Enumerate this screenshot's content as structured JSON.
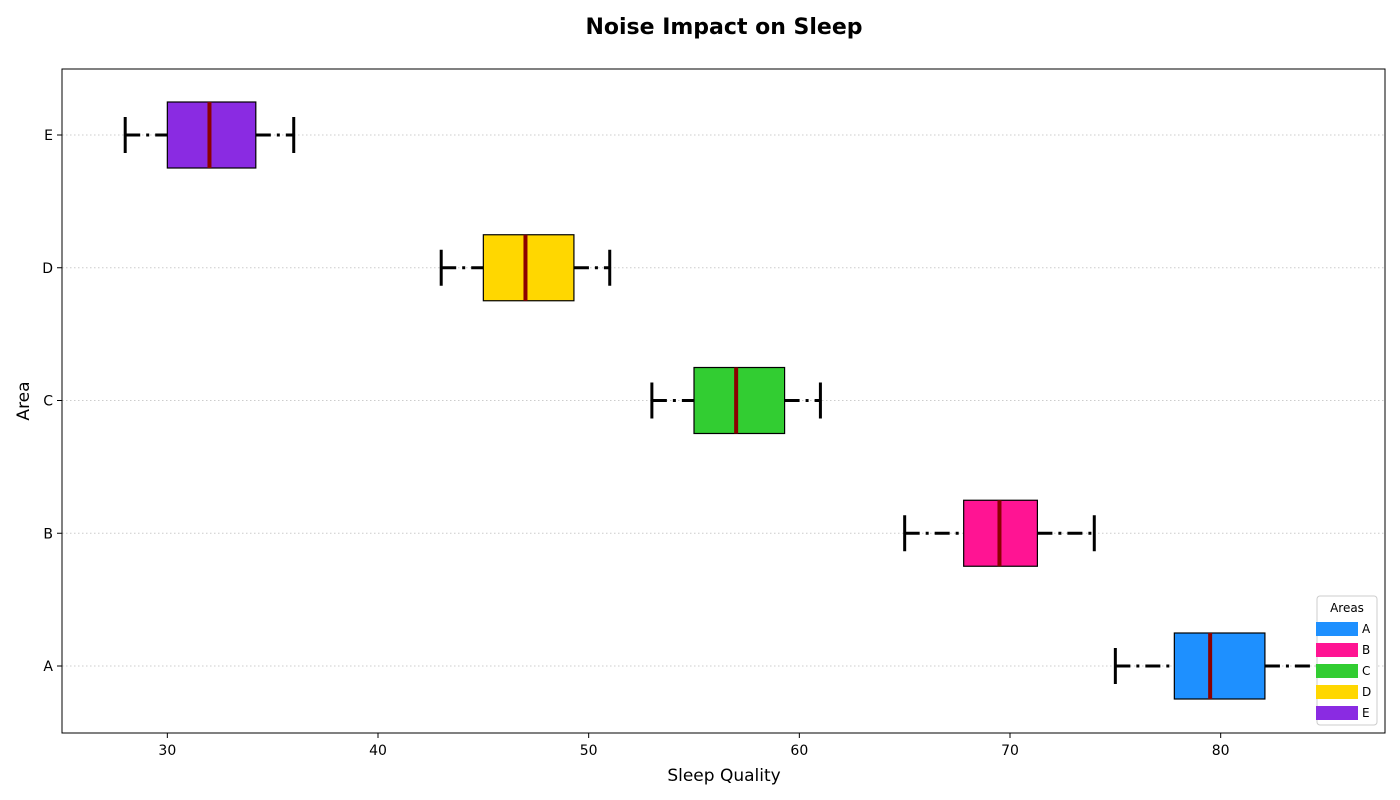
{
  "chart_data": {
    "type": "box",
    "orientation": "horizontal",
    "title": "Noise Impact on Sleep",
    "xlabel": "Sleep Quality",
    "ylabel": "Area",
    "xlim": [
      25,
      87.8
    ],
    "xticks": [
      30,
      40,
      50,
      60,
      70,
      80
    ],
    "grid": "horizontal dotted",
    "categories": [
      "A",
      "B",
      "C",
      "D",
      "E"
    ],
    "boxes": [
      {
        "category": "A",
        "whisker_low": 75,
        "q1": 77.8,
        "median": 79.5,
        "q3": 82.1,
        "whisker_high": 85,
        "color": "#1E90FF"
      },
      {
        "category": "B",
        "whisker_low": 65,
        "q1": 67.8,
        "median": 69.5,
        "q3": 71.3,
        "whisker_high": 74,
        "color": "#FF1493"
      },
      {
        "category": "C",
        "whisker_low": 53,
        "q1": 55,
        "median": 57,
        "q3": 59.3,
        "whisker_high": 61,
        "color": "#32CD32"
      },
      {
        "category": "D",
        "whisker_low": 43,
        "q1": 45,
        "median": 47,
        "q3": 49.3,
        "whisker_high": 51,
        "color": "#FFD700"
      },
      {
        "category": "E",
        "whisker_low": 28,
        "q1": 30,
        "median": 32,
        "q3": 34.2,
        "whisker_high": 36,
        "color": "#8A2BE2"
      }
    ],
    "median_color": "#8B0000",
    "legend": {
      "title": "Areas",
      "placement": "bottom-right",
      "entries": [
        "A",
        "B",
        "C",
        "D",
        "E"
      ]
    }
  }
}
